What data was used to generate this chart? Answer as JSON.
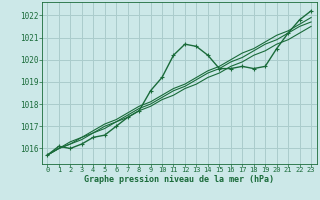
{
  "background_color": "#cce8e8",
  "grid_color": "#aacccc",
  "line_color": "#1a6b3a",
  "text_color": "#1a6b3a",
  "xlabel": "Graphe pression niveau de la mer (hPa)",
  "xlim": [
    -0.5,
    23.5
  ],
  "ylim": [
    1015.3,
    1022.6
  ],
  "yticks": [
    1016,
    1017,
    1018,
    1019,
    1020,
    1021,
    1022
  ],
  "xticks": [
    0,
    1,
    2,
    3,
    4,
    5,
    6,
    7,
    8,
    9,
    10,
    11,
    12,
    13,
    14,
    15,
    16,
    17,
    18,
    19,
    20,
    21,
    22,
    23
  ],
  "series_main": [
    1015.7,
    1016.1,
    1016.0,
    1016.2,
    1016.5,
    1016.6,
    1017.0,
    1017.4,
    1017.7,
    1018.6,
    1019.2,
    1020.2,
    1020.7,
    1020.6,
    1020.2,
    1019.6,
    1019.6,
    1019.7,
    1019.6,
    1019.7,
    1020.5,
    1021.2,
    1021.8,
    1022.2
  ],
  "series_linear": [
    [
      1015.7,
      1016.0,
      1016.2,
      1016.5,
      1016.7,
      1017.0,
      1017.2,
      1017.5,
      1017.8,
      1018.0,
      1018.3,
      1018.6,
      1018.8,
      1019.1,
      1019.4,
      1019.6,
      1019.9,
      1020.1,
      1020.4,
      1020.7,
      1020.9,
      1021.2,
      1021.5,
      1021.7
    ],
    [
      1015.7,
      1016.0,
      1016.3,
      1016.5,
      1016.8,
      1017.1,
      1017.3,
      1017.6,
      1017.9,
      1018.1,
      1018.4,
      1018.7,
      1018.9,
      1019.2,
      1019.5,
      1019.7,
      1020.0,
      1020.3,
      1020.5,
      1020.8,
      1021.1,
      1021.3,
      1021.6,
      1021.9
    ],
    [
      1015.7,
      1016.0,
      1016.2,
      1016.4,
      1016.7,
      1016.9,
      1017.2,
      1017.4,
      1017.7,
      1017.9,
      1018.2,
      1018.4,
      1018.7,
      1018.9,
      1019.2,
      1019.4,
      1019.7,
      1019.9,
      1020.2,
      1020.4,
      1020.7,
      1020.9,
      1021.2,
      1021.5
    ]
  ]
}
